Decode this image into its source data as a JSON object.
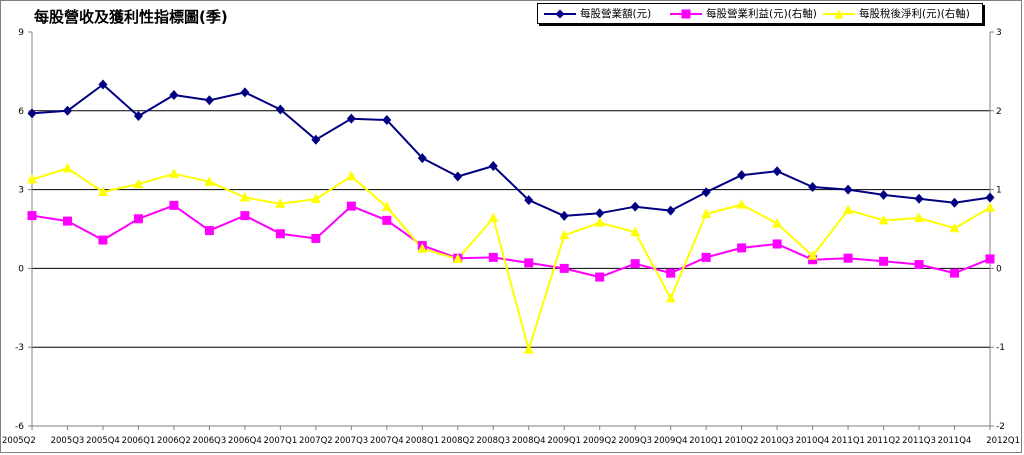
{
  "chart_data": {
    "type": "line",
    "title": "每股營收及獲利性指標圖(季)",
    "categories": [
      "2005Q2",
      "2005Q3",
      "2005Q4",
      "2006Q1",
      "2006Q2",
      "2006Q3",
      "2006Q4",
      "2007Q1",
      "2007Q2",
      "2007Q3",
      "2007Q4",
      "2008Q1",
      "2008Q2",
      "2008Q3",
      "2008Q4",
      "2009Q1",
      "2009Q2",
      "2009Q3",
      "2009Q4",
      "2010Q1",
      "2010Q2",
      "2010Q3",
      "2010Q4",
      "2011Q1",
      "2011Q2",
      "2011Q3",
      "2011Q4",
      "2012Q1"
    ],
    "y_left": {
      "ylim": [
        -6,
        9
      ],
      "ticks": [
        "9",
        "6",
        "3",
        "0",
        "-3",
        "-6"
      ]
    },
    "y_right": {
      "ylim": [
        -2,
        3
      ],
      "ticks": [
        "3",
        "2",
        "1",
        "0",
        "-1",
        "-2"
      ]
    },
    "gridlines": [
      6,
      3,
      0,
      -3
    ],
    "legend_position": "top-right",
    "series": [
      {
        "name": "每股營業額(元)",
        "axis": "left",
        "color": "#000080",
        "marker": "diamond",
        "values": [
          5.9,
          6.0,
          7.0,
          5.8,
          6.6,
          6.4,
          6.7,
          6.05,
          4.9,
          5.7,
          5.65,
          4.2,
          3.5,
          3.9,
          2.6,
          2.0,
          2.1,
          2.35,
          2.2,
          2.9,
          3.55,
          3.7,
          3.1,
          3.0,
          2.8,
          2.65,
          2.5,
          2.7
        ]
      },
      {
        "name": "每股營業利益(元)(右軸)",
        "axis": "right",
        "color": "#FF00FF",
        "marker": "square",
        "values": [
          0.67,
          0.6,
          0.36,
          0.63,
          0.8,
          0.48,
          0.67,
          0.44,
          0.38,
          0.79,
          0.61,
          0.29,
          0.13,
          0.14,
          0.07,
          0.0,
          -0.11,
          0.06,
          -0.06,
          0.14,
          0.26,
          0.31,
          0.11,
          0.13,
          0.09,
          0.05,
          -0.06,
          0.12
        ]
      },
      {
        "name": "每股稅後淨利(元)(右軸)",
        "axis": "right",
        "color": "#FFFF00",
        "marker": "triangle",
        "values": [
          1.13,
          1.27,
          0.97,
          1.07,
          1.2,
          1.1,
          0.9,
          0.82,
          0.88,
          1.17,
          0.78,
          0.25,
          0.12,
          0.64,
          -1.03,
          0.42,
          0.58,
          0.46,
          -0.38,
          0.69,
          0.81,
          0.57,
          0.16,
          0.74,
          0.61,
          0.64,
          0.51,
          0.77
        ]
      }
    ]
  }
}
